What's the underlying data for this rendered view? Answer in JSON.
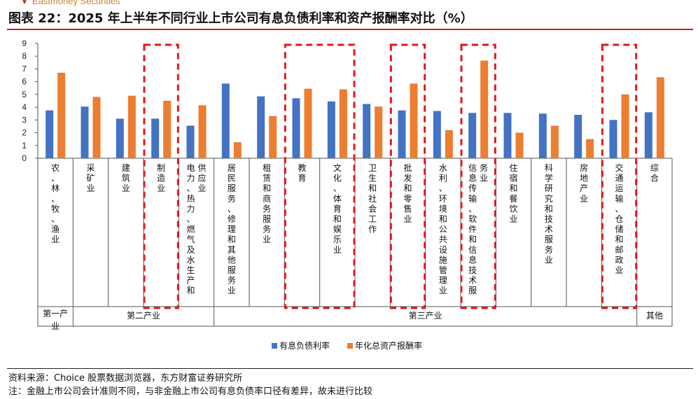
{
  "header": {
    "brand": "Eastmoney Securities",
    "title": "图表 22：2025 年上半年不同行业上市公司有息负债利率和资产报酬率对比（%）"
  },
  "footer": {
    "source": "资料来源：Choice 股票数据浏览器，东方财富证券研究所",
    "note": "注：金融上市公司会计准则不同，与非金融上市公司有息负债率口径有差异，故未进行比较"
  },
  "colors": {
    "series1": "#4472C4",
    "series2": "#ED7D31",
    "highlight": "#e0181b",
    "brand": "#c0281d"
  },
  "chart_data": {
    "type": "bar",
    "title": "",
    "xlabel": "",
    "ylabel": "",
    "ylim": [
      0,
      9
    ],
    "yticks": [
      0,
      1,
      2,
      3,
      4,
      5,
      6,
      7,
      8,
      9
    ],
    "grid": false,
    "legend_position": "bottom",
    "categories": [
      "农、林、牧、渔业",
      "采矿业",
      "建筑业",
      "制造业",
      "电力、热力、燃气及水生产和供应业",
      "居民服务、修理和其他服务业",
      "租赁和商务服务业",
      "教育",
      "文化、体育和娱乐业",
      "卫生和社会工作",
      "批发和零售业",
      "水利、环境和公共设施管理业",
      "信息传输、软件和信息技术服务业",
      "住宿和餐饮业",
      "科学研究和技术服务业",
      "房地产业",
      "交通运输、仓储和邮政业",
      "综合"
    ],
    "series": [
      {
        "name": "有息负债利率",
        "values": [
          3.75,
          4.05,
          3.1,
          3.1,
          2.55,
          5.85,
          4.85,
          4.7,
          4.45,
          4.25,
          3.75,
          3.7,
          3.55,
          3.55,
          3.5,
          3.4,
          3.0,
          3.6
        ]
      },
      {
        "name": "年化总资产报酬率",
        "values": [
          6.7,
          4.8,
          4.9,
          4.5,
          4.15,
          1.25,
          3.3,
          5.45,
          5.4,
          4.05,
          5.85,
          2.2,
          7.65,
          2.0,
          2.55,
          1.5,
          5.0,
          6.35
        ]
      }
    ],
    "groups": [
      {
        "label": "第一产业",
        "from": 0,
        "to": 0
      },
      {
        "label": "第二产业",
        "from": 1,
        "to": 4
      },
      {
        "label": "第三产业",
        "from": 5,
        "to": 16
      },
      {
        "label": "其他",
        "from": 17,
        "to": 17
      }
    ],
    "highlights": [
      [
        3,
        3
      ],
      [
        7,
        8
      ],
      [
        10,
        10
      ],
      [
        12,
        12
      ],
      [
        16,
        16
      ]
    ]
  }
}
